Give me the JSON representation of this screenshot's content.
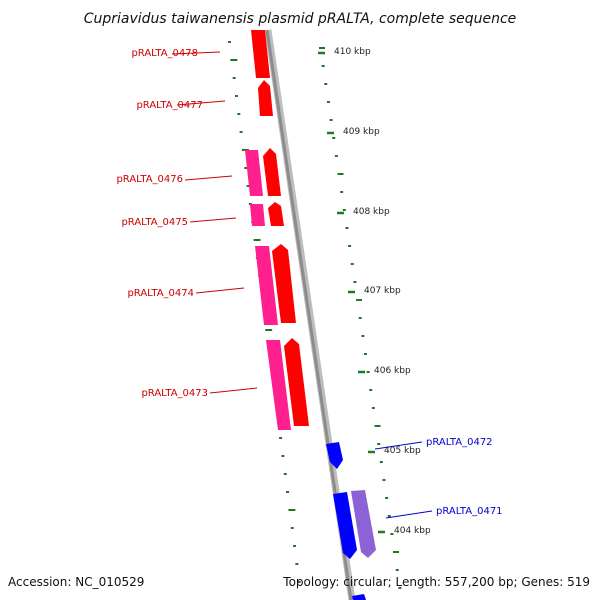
{
  "title": "Cupriavidus taiwanensis plasmid pRALTA, complete sequence",
  "accession": "Accession: NC_010529",
  "summary": "Topology: circular; Length: 557,200 bp; Genes: 519",
  "colors": {
    "forward_cds": "#ff0000",
    "forward_pair": "#ff1f8f",
    "reverse_cds": "#0000ff",
    "reverse_pair": "#8c63d6",
    "label_forward": "#cc0000",
    "label_reverse": "#0000cc",
    "gc_dots": "#1f7a1f",
    "backbone": "#8c8c8c"
  },
  "scale": {
    "unit": "kbp",
    "ticks": [
      {
        "value": 410,
        "label": "410 kbp"
      },
      {
        "value": 409,
        "label": "409 kbp"
      },
      {
        "value": 408,
        "label": "408 kbp"
      },
      {
        "value": 407,
        "label": "407 kbp"
      },
      {
        "value": 406,
        "label": "406 kbp"
      },
      {
        "value": 405,
        "label": "405 kbp"
      },
      {
        "value": 404,
        "label": "404 kbp"
      }
    ]
  },
  "genes": [
    {
      "id": "pRALTA_0478",
      "strand": "+"
    },
    {
      "id": "pRALTA_0477",
      "strand": "+"
    },
    {
      "id": "pRALTA_0476",
      "strand": "+"
    },
    {
      "id": "pRALTA_0475",
      "strand": "+"
    },
    {
      "id": "pRALTA_0474",
      "strand": "+"
    },
    {
      "id": "pRALTA_0473",
      "strand": "+"
    },
    {
      "id": "pRALTA_0472",
      "strand": "-"
    },
    {
      "id": "pRALTA_0471",
      "strand": "-"
    }
  ]
}
